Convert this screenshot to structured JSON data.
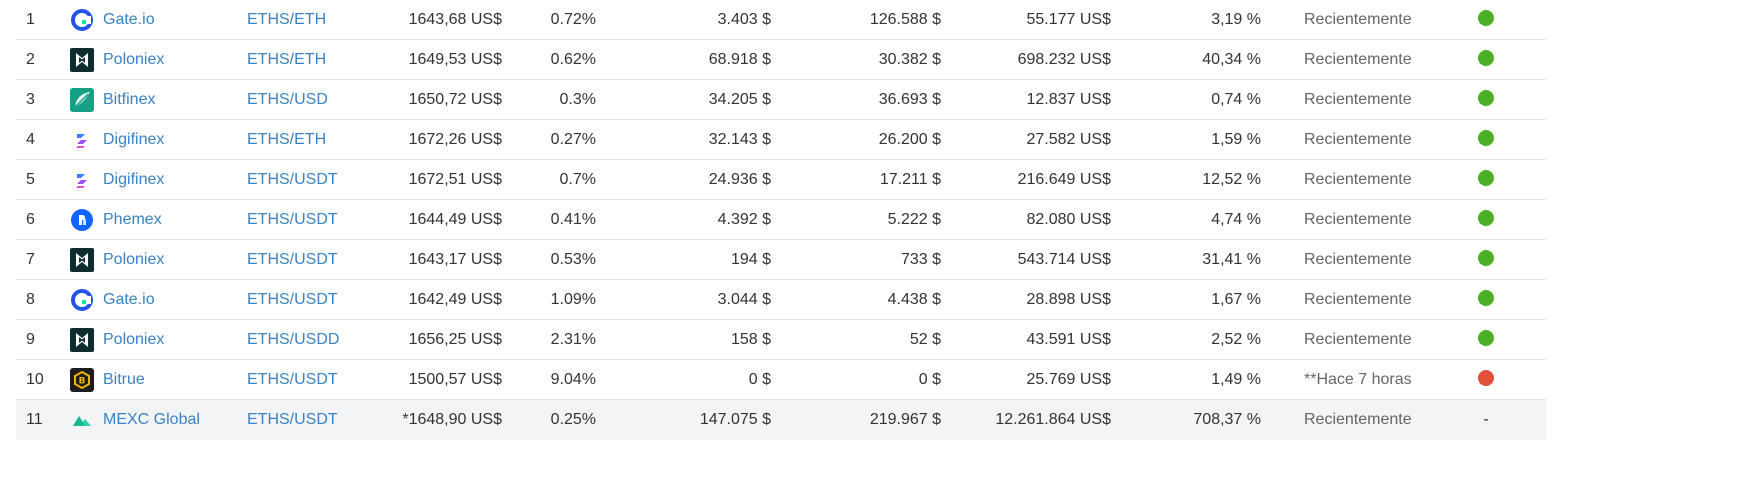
{
  "colors": {
    "link": "#3b82c4",
    "trust_green": "#4caf26",
    "trust_red": "#e2503b"
  },
  "rows": [
    {
      "rank": "1",
      "exchange": "Gate.io",
      "icon": "gate-io-logo-icon",
      "pair": "ETHS/ETH",
      "price": "1643,68 US$",
      "spread": "0.72%",
      "depth_plus": "3.403 $",
      "depth_minus": "126.588 $",
      "volume": "55.177 US$",
      "volume_pct": "3,19 %",
      "updated": "Recientemente",
      "trust": "green"
    },
    {
      "rank": "2",
      "exchange": "Poloniex",
      "icon": "poloniex-logo-icon",
      "pair": "ETHS/ETH",
      "price": "1649,53 US$",
      "spread": "0.62%",
      "depth_plus": "68.918 $",
      "depth_minus": "30.382 $",
      "volume": "698.232 US$",
      "volume_pct": "40,34 %",
      "updated": "Recientemente",
      "trust": "green"
    },
    {
      "rank": "3",
      "exchange": "Bitfinex",
      "icon": "bitfinex-logo-icon",
      "pair": "ETHS/USD",
      "price": "1650,72 US$",
      "spread": "0.3%",
      "depth_plus": "34.205 $",
      "depth_minus": "36.693 $",
      "volume": "12.837 US$",
      "volume_pct": "0,74 %",
      "updated": "Recientemente",
      "trust": "green"
    },
    {
      "rank": "4",
      "exchange": "Digifinex",
      "icon": "digifinex-logo-icon",
      "pair": "ETHS/ETH",
      "price": "1672,26 US$",
      "spread": "0.27%",
      "depth_plus": "32.143 $",
      "depth_minus": "26.200 $",
      "volume": "27.582 US$",
      "volume_pct": "1,59 %",
      "updated": "Recientemente",
      "trust": "green"
    },
    {
      "rank": "5",
      "exchange": "Digifinex",
      "icon": "digifinex-logo-icon",
      "pair": "ETHS/USDT",
      "price": "1672,51 US$",
      "spread": "0.7%",
      "depth_plus": "24.936 $",
      "depth_minus": "17.211 $",
      "volume": "216.649 US$",
      "volume_pct": "12,52 %",
      "updated": "Recientemente",
      "trust": "green"
    },
    {
      "rank": "6",
      "exchange": "Phemex",
      "icon": "phemex-logo-icon",
      "pair": "ETHS/USDT",
      "price": "1644,49 US$",
      "spread": "0.41%",
      "depth_plus": "4.392 $",
      "depth_minus": "5.222 $",
      "volume": "82.080 US$",
      "volume_pct": "4,74 %",
      "updated": "Recientemente",
      "trust": "green"
    },
    {
      "rank": "7",
      "exchange": "Poloniex",
      "icon": "poloniex-logo-icon",
      "pair": "ETHS/USDT",
      "price": "1643,17 US$",
      "spread": "0.53%",
      "depth_plus": "194 $",
      "depth_minus": "733 $",
      "volume": "543.714 US$",
      "volume_pct": "31,41 %",
      "updated": "Recientemente",
      "trust": "green"
    },
    {
      "rank": "8",
      "exchange": "Gate.io",
      "icon": "gate-io-logo-icon",
      "pair": "ETHS/USDT",
      "price": "1642,49 US$",
      "spread": "1.09%",
      "depth_plus": "3.044 $",
      "depth_minus": "4.438 $",
      "volume": "28.898 US$",
      "volume_pct": "1,67 %",
      "updated": "Recientemente",
      "trust": "green"
    },
    {
      "rank": "9",
      "exchange": "Poloniex",
      "icon": "poloniex-logo-icon",
      "pair": "ETHS/USDD",
      "price": "1656,25 US$",
      "spread": "2.31%",
      "depth_plus": "158 $",
      "depth_minus": "52 $",
      "volume": "43.591 US$",
      "volume_pct": "2,52 %",
      "updated": "Recientemente",
      "trust": "green"
    },
    {
      "rank": "10",
      "exchange": "Bitrue",
      "icon": "bitrue-logo-icon",
      "pair": "ETHS/USDT",
      "price": "1500,57 US$",
      "spread": "9.04%",
      "depth_plus": "0 $",
      "depth_minus": "0 $",
      "volume": "25.769 US$",
      "volume_pct": "1,49 %",
      "updated": "**Hace 7 horas",
      "trust": "red"
    },
    {
      "rank": "11",
      "exchange": "MEXC Global",
      "icon": "mexc-global-logo-icon",
      "pair": "ETHS/USDT",
      "price": "*1648,90 US$",
      "spread": "0.25%",
      "depth_plus": "147.075 $",
      "depth_minus": "219.967 $",
      "volume": "12.261.864 US$",
      "volume_pct": "708,37 %",
      "updated": "Recientemente",
      "trust": "-"
    }
  ]
}
